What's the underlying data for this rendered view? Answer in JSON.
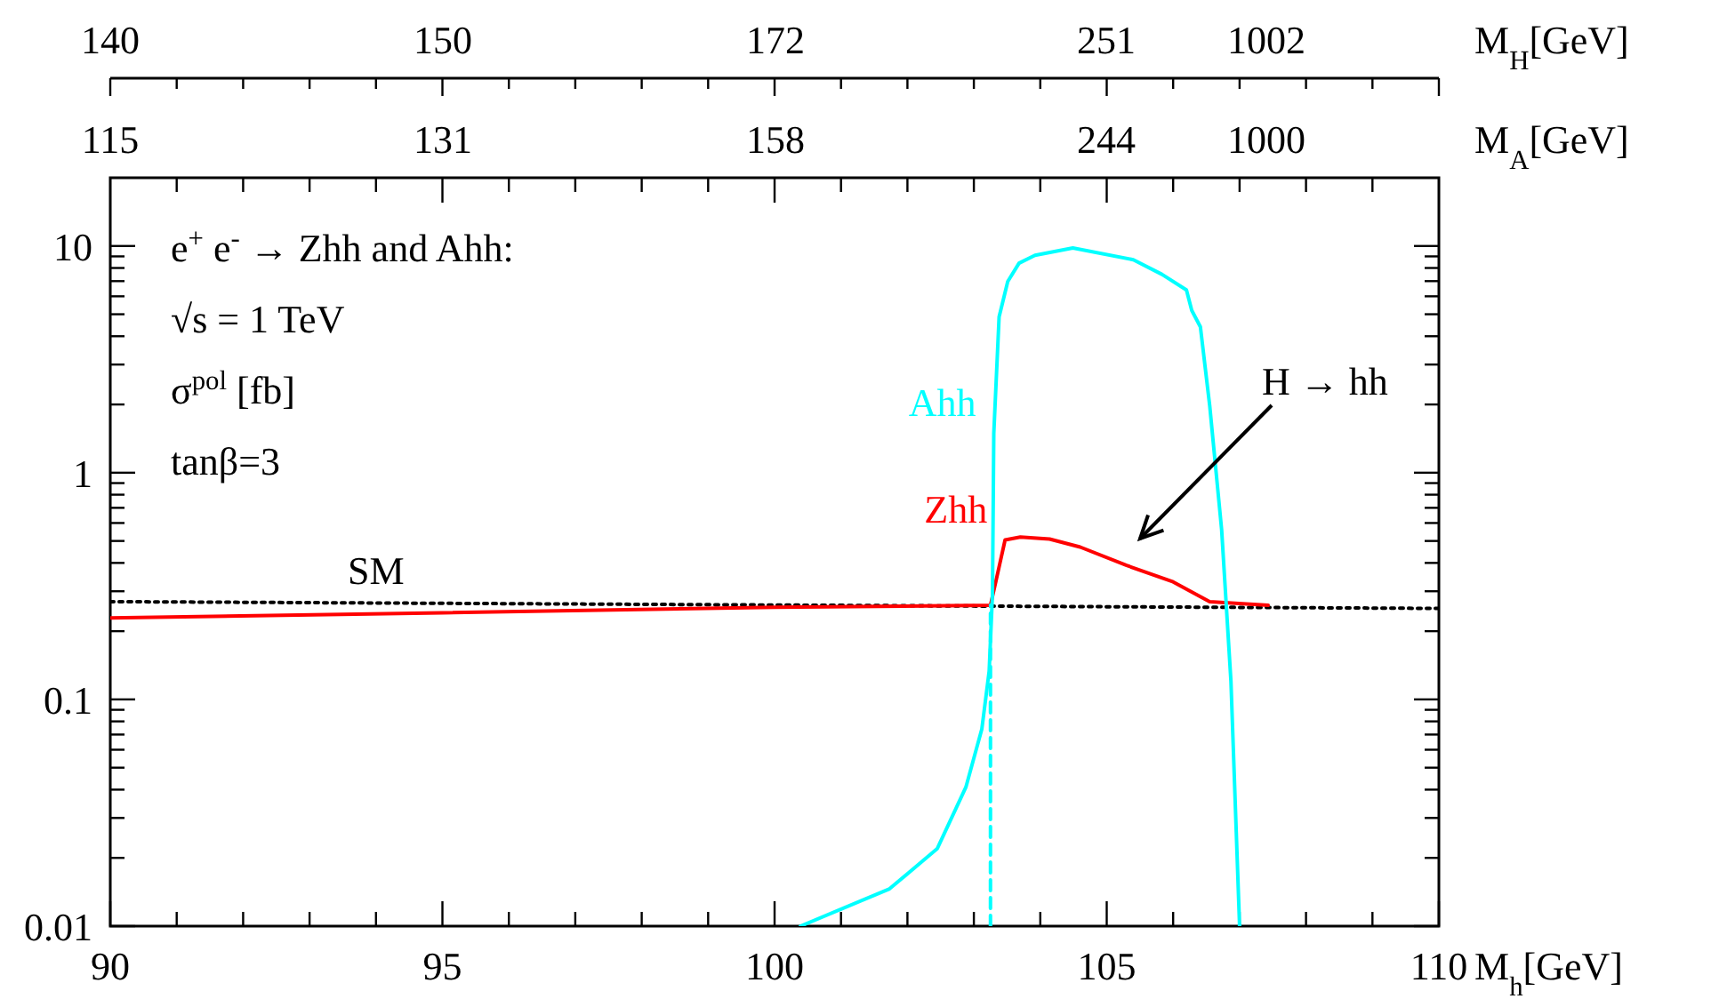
{
  "chart_data": {
    "type": "line",
    "log": "y",
    "annotations": [
      "e$^{+}$ e$^{-}$ → Zhh and Ahh:",
      "√s = 1 TeV",
      "σ$^{pol}$ [fb]",
      "tanβ=3",
      "H → hh",
      "140",
      "150",
      "172",
      "251",
      "1002",
      "M$_{H}$[GeV]",
      "115",
      "131",
      "158",
      "244",
      "1000",
      "M$_{A}$[GeV]"
    ],
    "xlabel": "M$_{h}$[GeV]",
    "xlim": [
      90,
      110
    ],
    "xticks": [
      90,
      {
        "value": 91,
        "label": null
      },
      {
        "value": 92,
        "label": null
      },
      {
        "value": 93,
        "label": null
      },
      {
        "value": 94,
        "label": null
      },
      95,
      {
        "value": 96,
        "label": null
      },
      {
        "value": 97,
        "label": null
      },
      {
        "value": 98,
        "label": null
      },
      {
        "value": 99,
        "label": null
      },
      100,
      {
        "value": 101,
        "label": null
      },
      {
        "value": 102,
        "label": null
      },
      {
        "value": 103,
        "label": null
      },
      {
        "value": 104,
        "label": null
      },
      105,
      {
        "value": 106,
        "label": null
      },
      {
        "value": 107,
        "label": null
      },
      {
        "value": 108,
        "label": null
      },
      {
        "value": 109,
        "label": null
      },
      110
    ],
    "ylim": [
      0.01,
      20
    ],
    "yticks": [
      0.01,
      {
        "value": 0.02,
        "label": null
      },
      {
        "value": 0.03,
        "label": null
      },
      {
        "value": 0.04,
        "label": null
      },
      {
        "value": 0.05,
        "label": null
      },
      {
        "value": 0.06,
        "label": null
      },
      {
        "value": 0.07,
        "label": null
      },
      {
        "value": 0.08,
        "label": null
      },
      {
        "value": 0.09,
        "label": null
      },
      0.1,
      {
        "value": 0.2,
        "label": null
      },
      {
        "value": 0.3,
        "label": null
      },
      {
        "value": 0.4,
        "label": null
      },
      {
        "value": 0.5,
        "label": null
      },
      {
        "value": 0.6,
        "label": null
      },
      {
        "value": 0.7,
        "label": null
      },
      {
        "value": 0.8,
        "label": null
      },
      {
        "value": 0.9,
        "label": null
      },
      1,
      {
        "value": 2,
        "label": null
      },
      {
        "value": 3,
        "label": null
      },
      {
        "value": 4,
        "label": null
      },
      {
        "value": 5,
        "label": null
      },
      {
        "value": 6,
        "label": null
      },
      {
        "value": 7,
        "label": null
      },
      {
        "value": 8,
        "label": null
      },
      {
        "value": 9,
        "label": null
      },
      10
    ],
    "series": [
      {
        "name": "SM",
        "color": "#000000",
        "line_style": "dotted",
        "x": [
          90,
          110
        ],
        "values": [
          0.27,
          0.252
        ]
      },
      {
        "name": "Zhh",
        "color": "#ff0000",
        "line_style": "solid",
        "x": [
          90,
          95,
          100,
          103.25,
          103.33,
          103.47,
          103.7,
          104.14,
          104.6,
          105.3,
          106.0,
          106.55,
          107.43
        ],
        "values": [
          0.229,
          0.241,
          0.255,
          0.26,
          0.33,
          0.505,
          0.52,
          0.51,
          0.47,
          0.39,
          0.33,
          0.27,
          0.26
        ]
      },
      {
        "name": "Ahh",
        "color": "#00ffff",
        "line_style": "solid",
        "x": [
          100.39,
          101.73,
          102.45,
          102.88,
          103.12,
          103.23,
          103.28,
          103.3,
          103.38,
          103.51,
          103.68,
          103.92,
          104.49,
          105.4,
          105.83,
          106.2,
          106.28,
          106.41,
          106.55,
          106.73,
          106.87,
          106.95,
          107.0
        ],
        "values": [
          0.01,
          0.0146,
          0.022,
          0.041,
          0.074,
          0.133,
          0.29,
          1.49,
          4.87,
          6.97,
          8.4,
          9.1,
          9.8,
          8.7,
          7.5,
          6.4,
          5.2,
          4.4,
          1.98,
          0.56,
          0.12,
          0.026,
          0.01
        ]
      },
      {
        "color": "#00ffff",
        "line_style": "dashed",
        "x": [
          103.25,
          103.25
        ],
        "values": [
          0.01,
          0.26
        ]
      }
    ]
  }
}
